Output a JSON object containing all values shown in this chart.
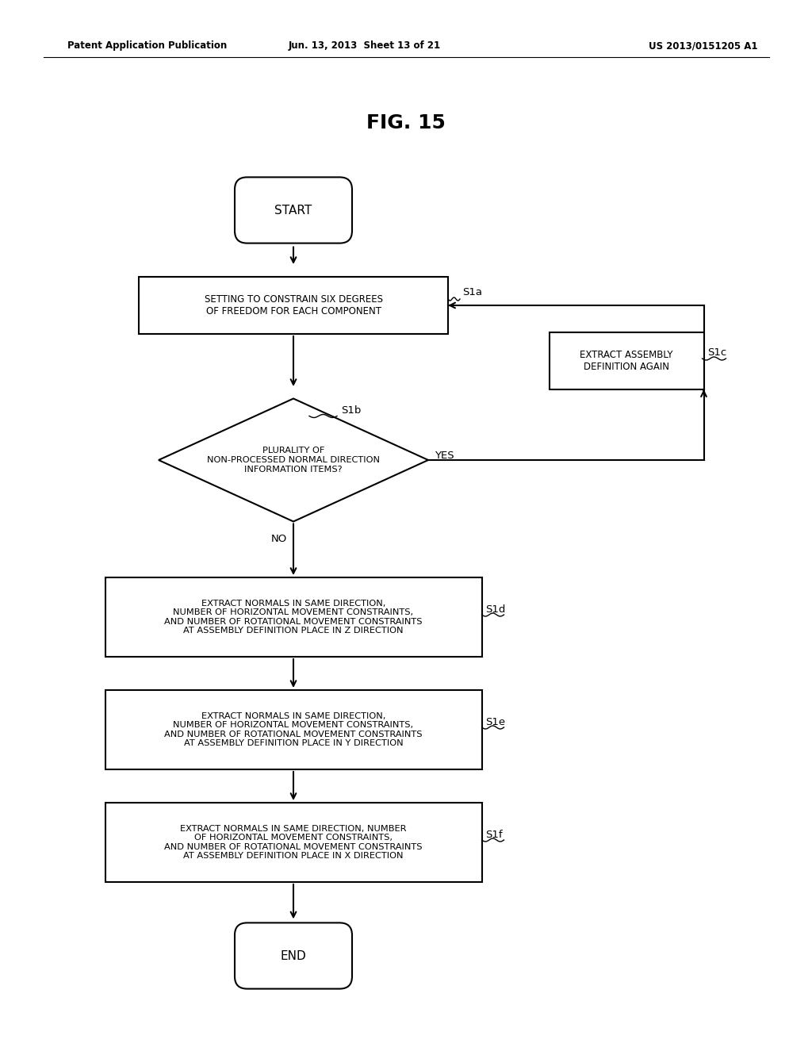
{
  "title": "FIG. 15",
  "header_left": "Patent Application Publication",
  "header_mid": "Jun. 13, 2013  Sheet 13 of 21",
  "header_right": "US 2013/0151205 A1",
  "background_color": "#ffffff",
  "lw": 1.5,
  "arrow_lw": 1.5,
  "start_label": "START",
  "end_label": "END",
  "s1a_label": "SETTING TO CONSTRAIN SIX DEGREES\nOF FREEDOM FOR EACH COMPONENT",
  "s1a_tag": "S1a",
  "s1b_label": "PLURALITY OF\nNON-PROCESSED NORMAL DIRECTION\nINFORMATION ITEMS?",
  "s1b_tag": "S1b",
  "s1c_label": "EXTRACT ASSEMBLY\nDEFINITION AGAIN",
  "s1c_tag": "S1c",
  "s1d_label": "EXTRACT NORMALS IN SAME DIRECTION,\nNUMBER OF HORIZONTAL MOVEMENT CONSTRAINTS,\nAND NUMBER OF ROTATIONAL MOVEMENT CONSTRAINTS\nAT ASSEMBLY DEFINITION PLACE IN Z DIRECTION",
  "s1d_tag": "S1d",
  "s1e_label": "EXTRACT NORMALS IN SAME DIRECTION,\nNUMBER OF HORIZONTAL MOVEMENT CONSTRAINTS,\nAND NUMBER OF ROTATIONAL MOVEMENT CONSTRAINTS\nAT ASSEMBLY DEFINITION PLACE IN Y DIRECTION",
  "s1e_tag": "S1e",
  "s1f_label": "EXTRACT NORMALS IN SAME DIRECTION, NUMBER\nOF HORIZONTAL MOVEMENT CONSTRAINTS,\nAND NUMBER OF ROTATIONAL MOVEMENT CONSTRAINTS\nAT ASSEMBLY DEFINITION PLACE IN X DIRECTION",
  "s1f_tag": "S1f",
  "yes_label": "YES",
  "no_label": "NO"
}
